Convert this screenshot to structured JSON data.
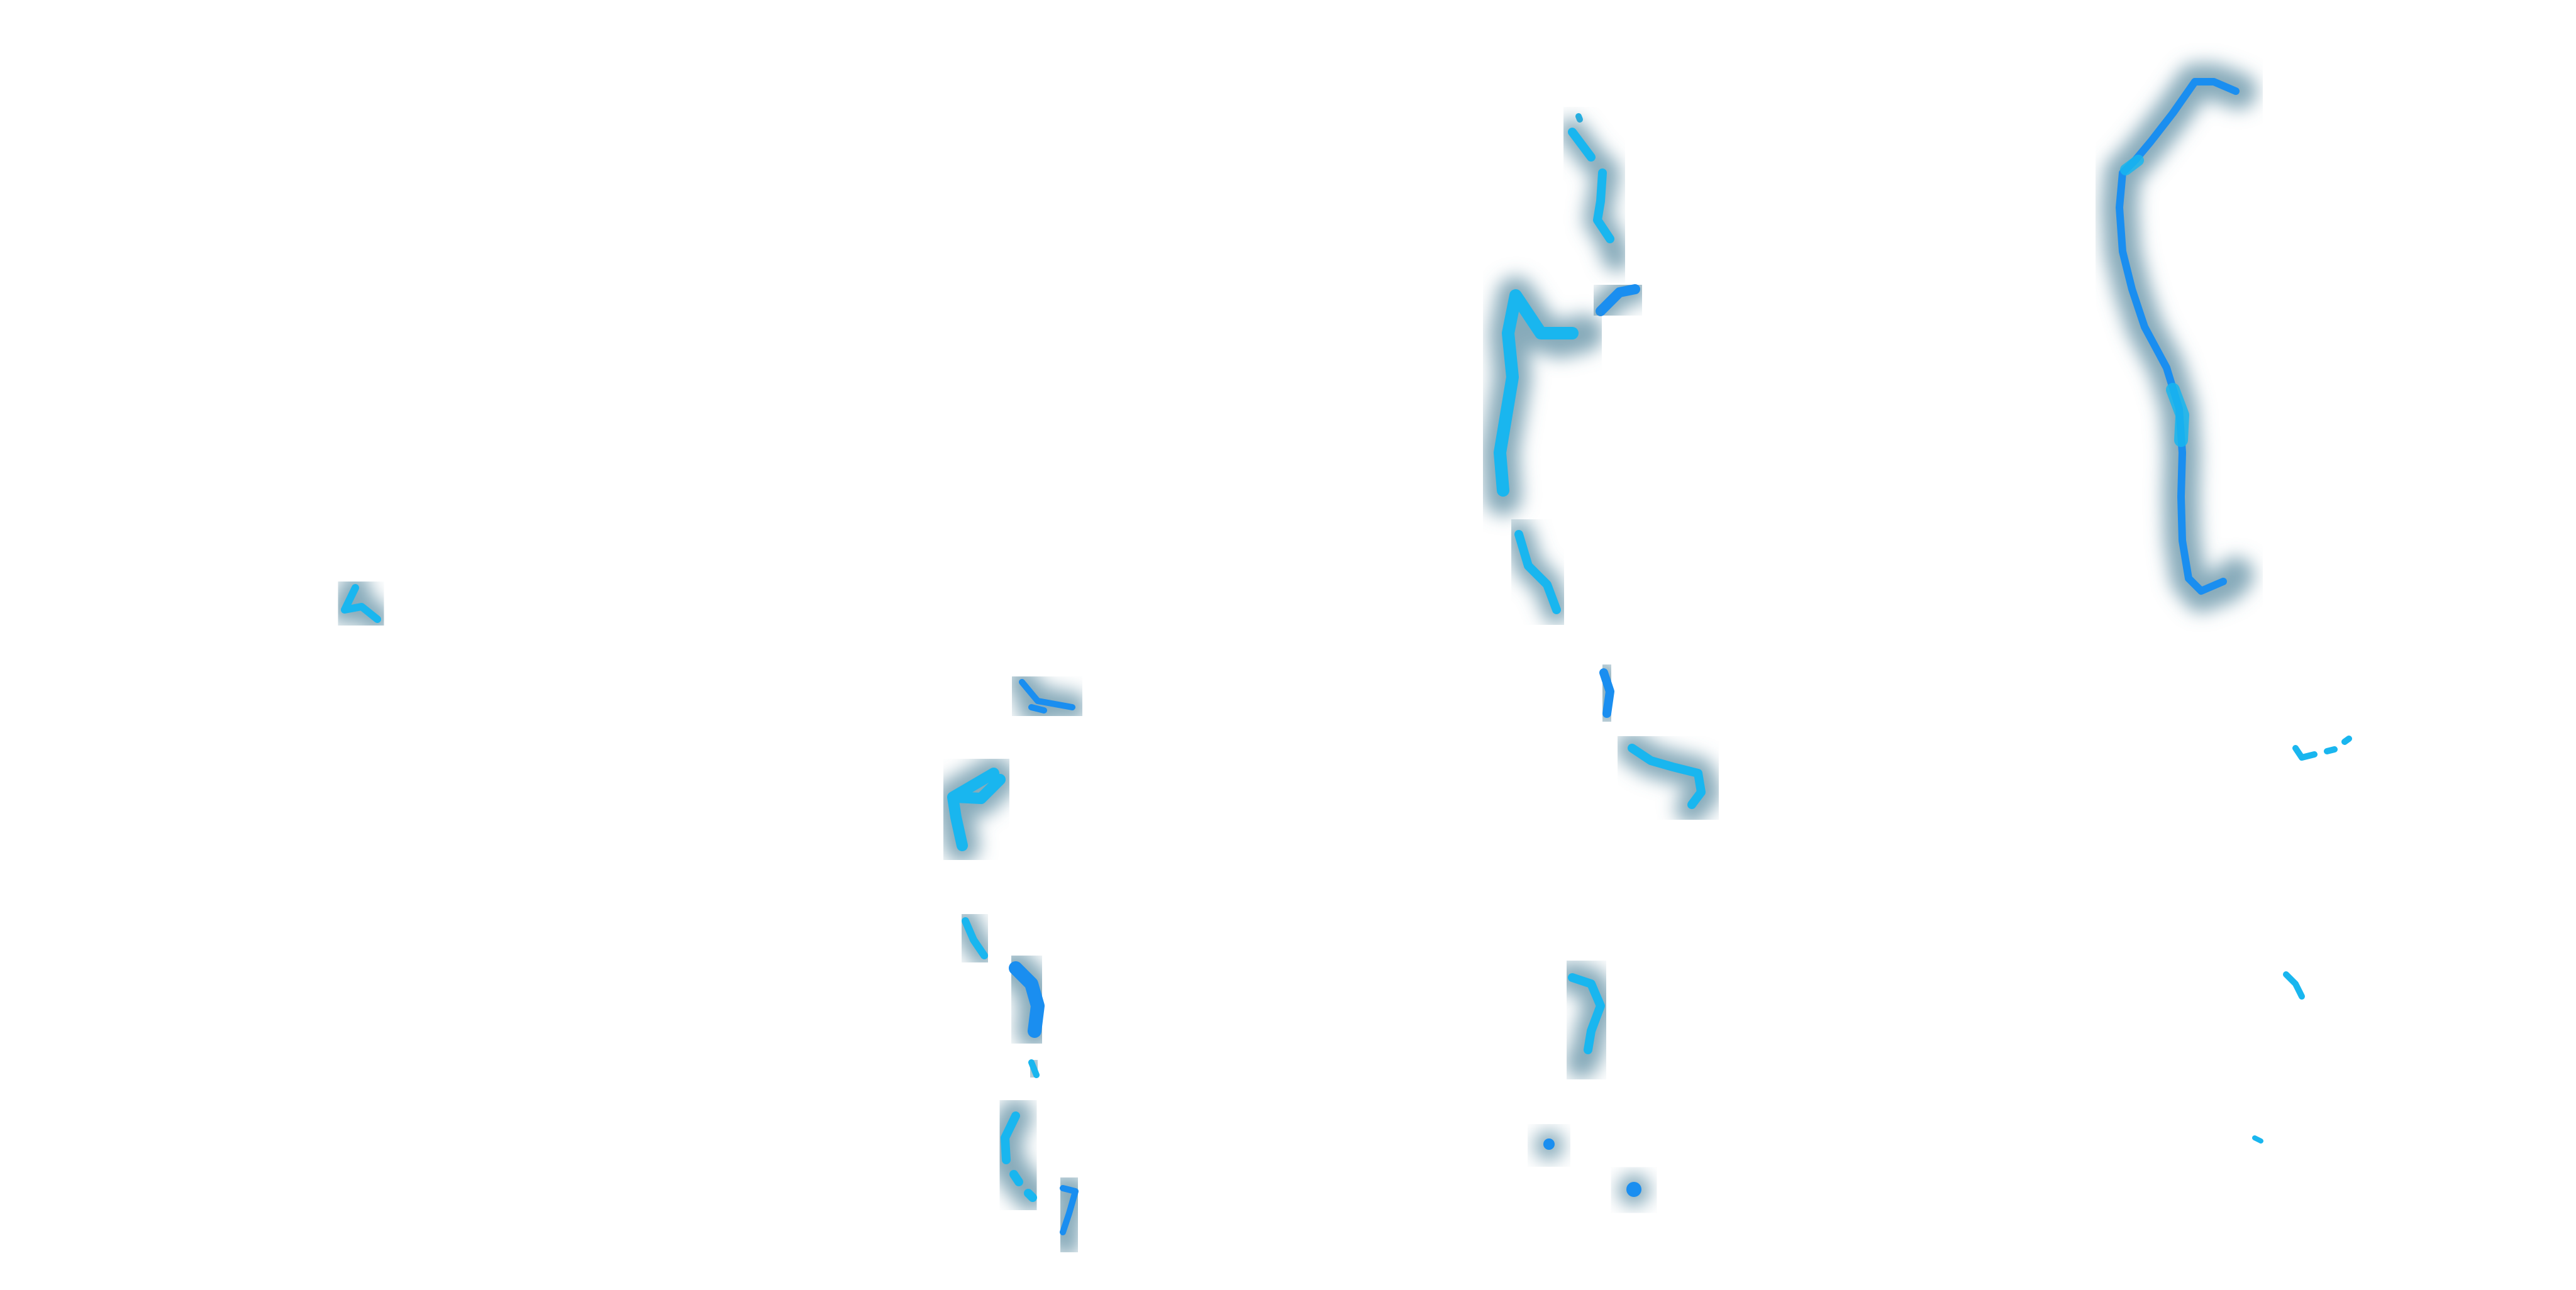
{
  "colors": {
    "background": "#ffffff",
    "glow": "#5f8fa3",
    "core_light": "#19b6ef",
    "core_deep": "#1a8ef0"
  }
}
